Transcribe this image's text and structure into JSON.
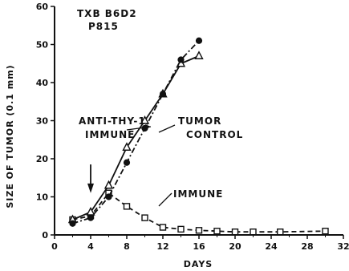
{
  "chart_data": {
    "type": "line",
    "title": "TXB B6D2 P815",
    "title_lines": [
      "TXB B6D2",
      "P815"
    ],
    "xlabel": "DAYS",
    "ylabel": "SIZE OF TUMOR (0.1 mm)",
    "xlim": [
      0,
      32
    ],
    "ylim": [
      0,
      60
    ],
    "xticks": [
      0,
      4,
      8,
      12,
      16,
      20,
      24,
      28,
      32
    ],
    "yticks": [
      0,
      10,
      20,
      30,
      40,
      50,
      60
    ],
    "grid": false,
    "arrow_day": 4,
    "series": [
      {
        "name": "TUMOR CONTROL",
        "marker": "circle-filled",
        "line": "dash-dot",
        "x": [
          2,
          4,
          6,
          8,
          10,
          12,
          14,
          16
        ],
        "y": [
          3,
          4.5,
          10,
          19,
          28,
          37,
          46,
          51
        ]
      },
      {
        "name": "ANTI-THY-1 IMMUNE",
        "marker": "triangle-open",
        "line": "solid",
        "x": [
          2,
          4,
          6,
          8,
          10,
          12,
          14,
          16
        ],
        "y": [
          4,
          6,
          13,
          23,
          30,
          37,
          45,
          47
        ]
      },
      {
        "name": "IMMUNE",
        "marker": "square-open",
        "line": "dashed",
        "x": [
          2,
          4,
          6,
          8,
          10,
          12,
          14,
          16,
          18,
          20,
          22,
          25,
          30
        ],
        "y": [
          4,
          5,
          11,
          7.5,
          4.5,
          2,
          1.5,
          1.2,
          1,
          0.8,
          0.8,
          0.8,
          1
        ]
      }
    ],
    "annotations": [
      {
        "text": "ANTI-THY-1",
        "series": 1
      },
      {
        "text": "IMMUNE",
        "series": 1
      },
      {
        "text": "TUMOR",
        "series": 0
      },
      {
        "text": "CONTROL",
        "series": 0
      },
      {
        "text": "IMMUNE",
        "series": 2
      }
    ]
  }
}
